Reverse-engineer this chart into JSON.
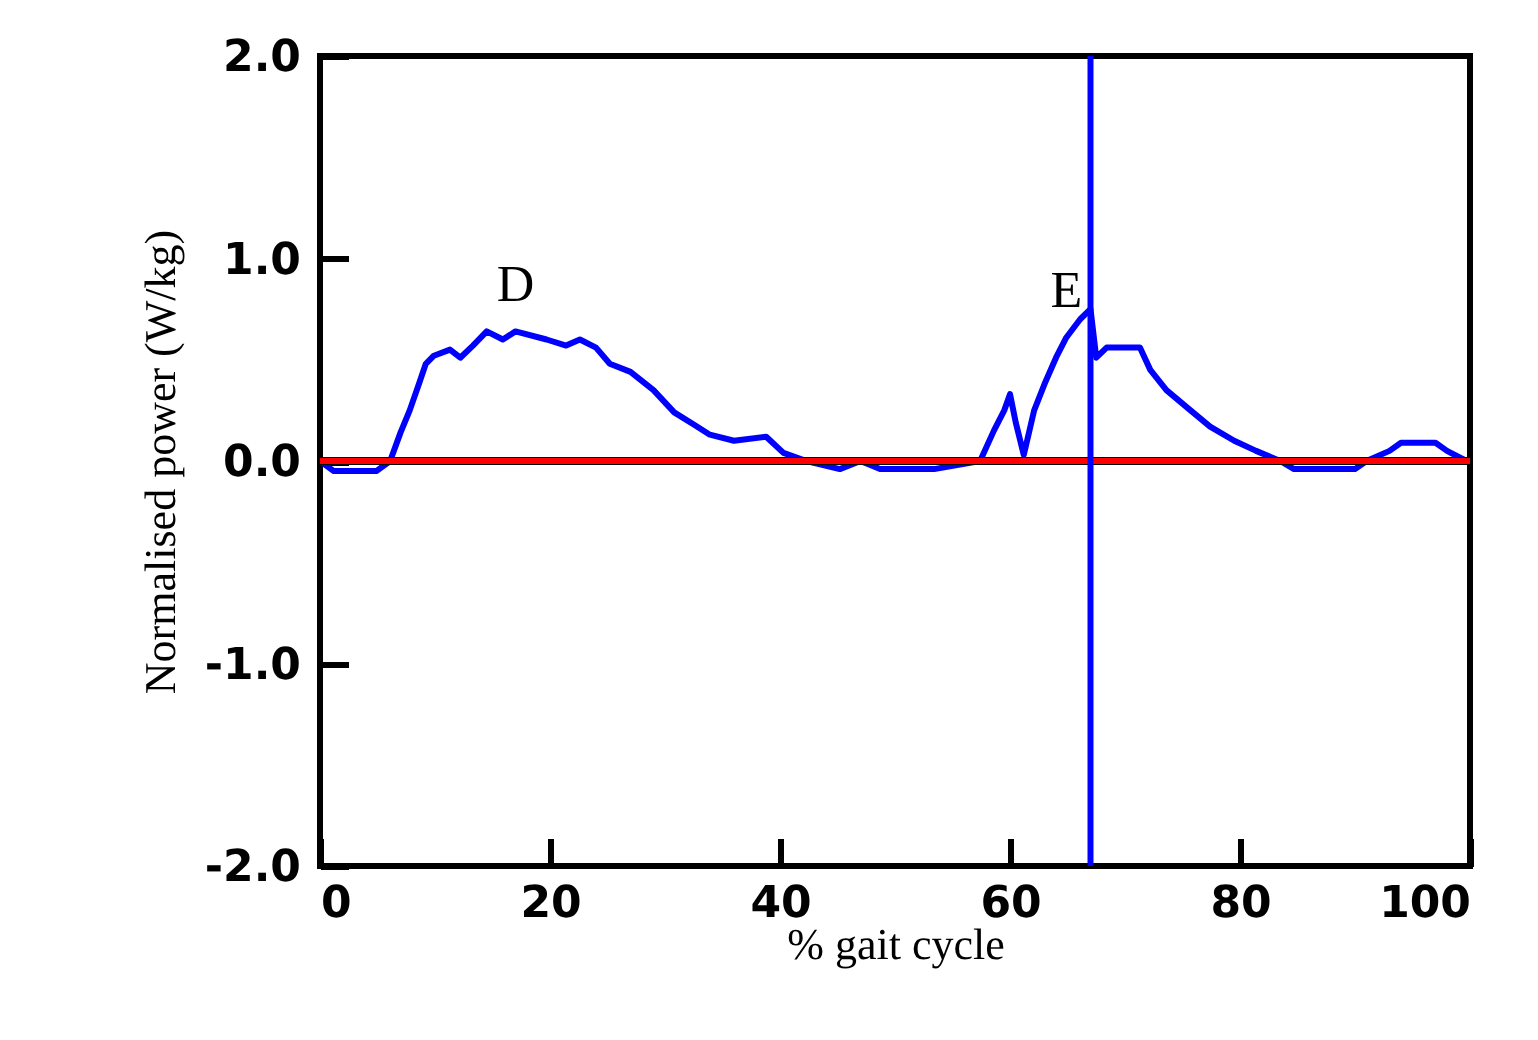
{
  "chart_data": {
    "type": "line",
    "xlabel": "% gait cycle",
    "ylabel": "Normalised power (W/kg)",
    "xlim": [
      0,
      100
    ],
    "xticks": [
      0,
      20,
      40,
      60,
      80,
      100
    ],
    "ylim": [
      -2,
      2
    ],
    "yticks": [
      {
        "value": -2,
        "label": "-2.0"
      },
      {
        "value": -1,
        "label": "-1.0"
      },
      {
        "value": 0,
        "label": "0.0"
      },
      {
        "value": 1,
        "label": "1.0"
      },
      {
        "value": 2,
        "label": "2.0"
      }
    ],
    "grid": false,
    "marker": "none",
    "line_style": "solid",
    "series": [
      {
        "color": "#0000ff",
        "x": [
          0,
          1.2,
          4.9,
          6.1,
          7,
          7.8,
          8.6,
          9.2,
          9.9,
          11.3,
          12.2,
          13.3,
          14.5,
          15.9,
          17,
          19.7,
          21.4,
          22.6,
          24,
          25.2,
          27,
          29,
          30.8,
          32.5,
          33.9,
          36,
          38.8,
          40.3,
          42.3,
          45.2,
          47,
          48.7,
          53.4,
          57.4,
          58.6,
          59.5,
          60,
          60.5,
          61.2,
          62.1,
          63,
          64,
          64.9,
          66.1,
          67,
          67.5,
          68.4,
          71.3,
          72.2,
          73.6,
          75.7,
          77.4,
          79.5,
          81.4,
          83.5,
          84.7,
          90,
          91,
          93,
          94,
          97,
          98,
          99.7
        ],
        "values": [
          0,
          -0.05,
          -0.05,
          0,
          0.14,
          0.25,
          0.38,
          0.48,
          0.52,
          0.55,
          0.51,
          0.57,
          0.64,
          0.6,
          0.64,
          0.6,
          0.57,
          0.6,
          0.56,
          0.48,
          0.44,
          0.35,
          0.24,
          0.18,
          0.13,
          0.1,
          0.12,
          0.04,
          0,
          -0.04,
          0,
          -0.04,
          -0.04,
          0,
          0.15,
          0.25,
          0.33,
          0.19,
          0.03,
          0.25,
          0.38,
          0.51,
          0.61,
          0.7,
          0.75,
          0.51,
          0.56,
          0.56,
          0.45,
          0.35,
          0.25,
          0.17,
          0.1,
          0.05,
          0,
          -0.04,
          -0.04,
          0,
          0.05,
          0.09,
          0.09,
          0.05,
          0
        ]
      },
      {
        "color": "#ff0000",
        "x": [
          0,
          100
        ],
        "values": [
          0,
          0
        ]
      }
    ],
    "ref_lines": [
      {
        "axis": "y",
        "value": 0,
        "color": "#000000"
      },
      {
        "axis": "x",
        "value": 67,
        "color": "#0000ff"
      }
    ],
    "annotations": [
      {
        "text": "D",
        "x": 17,
        "y": 0.64
      },
      {
        "text": "E",
        "x": 64.9,
        "y": 0.61
      }
    ]
  }
}
